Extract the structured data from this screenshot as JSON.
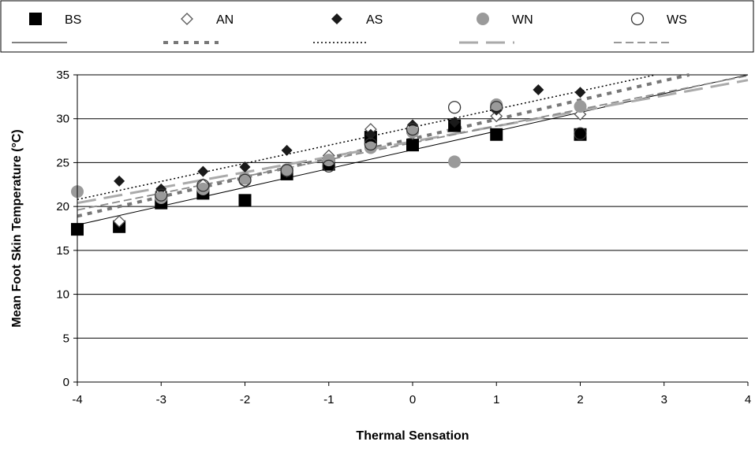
{
  "chart_data": {
    "type": "scatter",
    "xlabel": "Thermal Sensation",
    "ylabel": "Mean Foot Skin Temperature (°C)",
    "xlim": [
      -4,
      4
    ],
    "ylim": [
      0,
      35
    ],
    "x_ticks": [
      "-4",
      "-3",
      "-2",
      "-1",
      "0",
      "1",
      "2",
      "3",
      "4"
    ],
    "y_ticks": [
      "0",
      "5",
      "10",
      "15",
      "20",
      "25",
      "30",
      "35"
    ],
    "grid": "horizontal",
    "legend_position": "top",
    "series": [
      {
        "name": "BS",
        "marker": "square-filled",
        "color": "#000000",
        "points": [
          [
            -4,
            17.4
          ],
          [
            -3.5,
            17.7
          ],
          [
            -3,
            20.4
          ],
          [
            -2.5,
            21.5
          ],
          [
            -2,
            20.7
          ],
          [
            -1.5,
            23.7
          ],
          [
            -1,
            24.8
          ],
          [
            -0.5,
            27.9
          ],
          [
            0,
            27.0
          ],
          [
            0.5,
            29.2
          ],
          [
            1,
            28.2
          ],
          [
            2,
            28.2
          ]
        ],
        "trend": {
          "style": "solid",
          "color": "#000000",
          "width": 1,
          "x": [
            -4,
            4
          ],
          "y": [
            17.9,
            35.0
          ]
        }
      },
      {
        "name": "AN",
        "marker": "diamond-open",
        "color": "#555555",
        "points": [
          [
            -3.5,
            18.3
          ],
          [
            -3,
            21.7
          ],
          [
            -2.5,
            22.5
          ],
          [
            -2,
            22.8
          ],
          [
            -1.5,
            24.0
          ],
          [
            -1,
            25.8
          ],
          [
            -0.5,
            28.8
          ],
          [
            0,
            28.3
          ],
          [
            1,
            30.3
          ],
          [
            2,
            30.5
          ]
        ],
        "trend": {
          "style": "dotted-thick",
          "color": "#777777",
          "width": 4,
          "x": [
            -4,
            3.3
          ],
          "y": [
            18.9,
            35.0
          ]
        }
      },
      {
        "name": "AS",
        "marker": "diamond-filled",
        "color": "#1a1a1a",
        "points": [
          [
            -3.5,
            22.9
          ],
          [
            -3,
            22.0
          ],
          [
            -2.5,
            24.0
          ],
          [
            -2,
            24.5
          ],
          [
            -1.5,
            26.4
          ],
          [
            -1,
            25.2
          ],
          [
            -0.5,
            28.2
          ],
          [
            0,
            29.3
          ],
          [
            0.5,
            29.6
          ],
          [
            1,
            31.0
          ],
          [
            1.5,
            33.3
          ],
          [
            2,
            33.0
          ]
        ],
        "trend": {
          "style": "dotted",
          "color": "#000000",
          "width": 1.5,
          "x": [
            -4,
            2.9
          ],
          "y": [
            20.8,
            35.0
          ]
        }
      },
      {
        "name": "WN",
        "marker": "circle-filled",
        "color": "#9a9a9a",
        "points": [
          [
            -4,
            21.7
          ],
          [
            -3,
            21.0
          ],
          [
            -2.5,
            22.0
          ],
          [
            -2,
            23.2
          ],
          [
            -1.5,
            24.2
          ],
          [
            -1,
            25.3
          ],
          [
            -0.5,
            26.7
          ],
          [
            0,
            28.5
          ],
          [
            0.5,
            25.1
          ],
          [
            1,
            31.6
          ],
          [
            2,
            31.4
          ]
        ],
        "trend": {
          "style": "long-dash",
          "color": "#aaaaaa",
          "width": 3,
          "x": [
            -4,
            4
          ],
          "y": [
            20.4,
            34.4
          ]
        }
      },
      {
        "name": "WS",
        "marker": "circle-open",
        "color": "#333333",
        "points": [
          [
            -3,
            21.3
          ],
          [
            -2.5,
            22.4
          ],
          [
            -2,
            23.0
          ],
          [
            -1.5,
            24.1
          ],
          [
            -1,
            24.6
          ],
          [
            -0.5,
            27.1
          ],
          [
            0,
            28.8
          ],
          [
            0.5,
            31.3
          ],
          [
            1,
            31.3
          ],
          [
            2,
            28.3
          ]
        ],
        "trend": {
          "style": "dashed",
          "color": "#8a8a8a",
          "width": 1.8,
          "x": [
            -4,
            4
          ],
          "y": [
            19.6,
            34.9
          ]
        }
      }
    ]
  }
}
